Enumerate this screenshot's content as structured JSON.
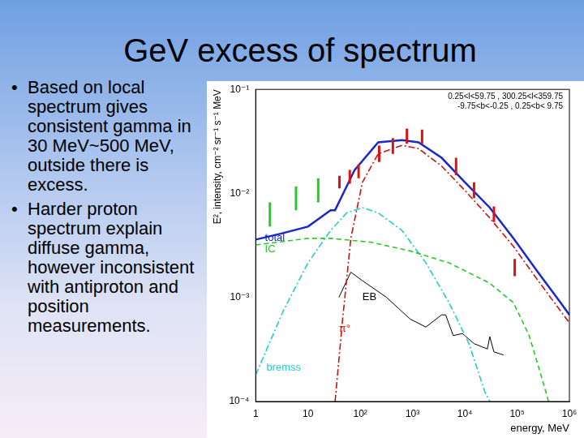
{
  "slide": {
    "title": "GeV excess of spectrum",
    "bullets": [
      "Based on local spectrum gives consistent gamma in 30 MeV~500 MeV, outside there is excess.",
      "Harder proton spectrum explain diffuse gamma, however inconsistent with antiproton and position measurements."
    ]
  },
  "chart_data": {
    "type": "line",
    "subtitle": [
      "0.25<l<59.75 , 300.25<l<359.75",
      "-9.75<b<-0.25 , 0.25<b< 9.75"
    ],
    "x_label": "energy, MeV",
    "y_label": "E², intensity, cm⁻² sr⁻¹ s⁻¹ MeV",
    "log": true,
    "grid": false,
    "xlim": [
      1,
      1000000
    ],
    "xticks": [
      1,
      10,
      {
        "value": 100,
        "label": "10²"
      },
      {
        "value": 1000,
        "label": "10³"
      },
      {
        "value": 10000,
        "label": "10⁴"
      },
      {
        "value": 100000,
        "label": "10⁵"
      },
      {
        "value": 1000000,
        "label": "10⁶"
      }
    ],
    "ylim": [
      0.0001,
      0.1
    ],
    "yticks": [
      {
        "value": 0.0001,
        "label": "10⁻⁴"
      },
      {
        "value": 0.001,
        "label": "10⁻³"
      },
      {
        "value": 0.01,
        "label": "10⁻²"
      },
      {
        "value": 0.1,
        "label": "10⁻¹"
      }
    ],
    "series": [
      {
        "name": "total",
        "type": "line",
        "color": "#1a28c8",
        "line_style": "solid",
        "label_at": [
          1.5,
          0.0037
        ],
        "x": [
          1,
          3,
          10,
          27,
          33,
          78,
          220,
          630,
          1300,
          3600,
          10000,
          30000,
          85000,
          240000,
          680000,
          1000000
        ],
        "values": [
          0.0036,
          0.0041,
          0.0048,
          0.0069,
          0.0069,
          0.0168,
          0.031,
          0.0325,
          0.031,
          0.022,
          0.0128,
          0.0073,
          0.0037,
          0.0018,
          0.00089,
          0.00068
        ]
      },
      {
        "name": "IC",
        "type": "line",
        "color": "#22cc22",
        "line_style": "dashed",
        "label_at": [
          1.5,
          0.0029
        ],
        "x": [
          1,
          10,
          27,
          158,
          900,
          5000,
          30000,
          85000,
          170000,
          290000,
          400000
        ],
        "values": [
          0.0032,
          0.0037,
          0.0037,
          0.0034,
          0.0028,
          0.00215,
          0.00137,
          0.00089,
          0.00043,
          0.000175,
          0.0001
        ]
      },
      {
        "name": "π°",
        "type": "line",
        "color": "#cc1111",
        "line_style": "dashdot",
        "label_at": [
          39,
          0.0005
        ],
        "x": [
          33,
          46,
          66,
          110,
          220,
          630,
          1300,
          3600,
          10000,
          30000,
          85000,
          240000,
          680000,
          1000000
        ],
        "values": [
          0.0001,
          0.00062,
          0.0037,
          0.0128,
          0.024,
          0.029,
          0.027,
          0.0183,
          0.0107,
          0.0058,
          0.0031,
          0.0015,
          0.00074,
          0.00057
        ]
      },
      {
        "name": "bremss",
        "type": "line",
        "color": "#22cccc",
        "line_style": "dashdot",
        "label_at": [
          1.6,
          0.00021
        ],
        "x": [
          1,
          3.4,
          10,
          27,
          55,
          110,
          220,
          630,
          1800,
          5000,
          12000,
          24000,
          30000
        ],
        "values": [
          0.00018,
          0.00075,
          0.00215,
          0.0044,
          0.0065,
          0.0073,
          0.0065,
          0.0044,
          0.00215,
          0.00089,
          0.00036,
          0.000125,
          0.0001
        ]
      },
      {
        "name": "EB",
        "type": "line",
        "color": "#000000",
        "line_style": "solid",
        "label_at": [
          110,
          0.001
        ],
        "x": [
          39,
          66,
          110,
          320,
          900,
          1800,
          3600,
          4300,
          6000,
          9000,
          15000,
          27000,
          30000,
          36000,
          55000
        ],
        "values": [
          0.001,
          0.00175,
          0.00145,
          0.001,
          0.00062,
          0.00052,
          0.00068,
          0.00068,
          0.00043,
          0.00045,
          0.00036,
          0.00032,
          0.00042,
          0.0003,
          0.00028
        ]
      },
      {
        "type": "errorbar",
        "color": "#22cc22",
        "x": [
          1.87,
          5.9,
          15.7
        ],
        "low": [
          0.0048,
          0.0069,
          0.0082
        ],
        "high": [
          0.0082,
          0.0117,
          0.014
        ]
      },
      {
        "type": "errorbar",
        "color": "#e01010",
        "x": [
          40,
          63,
          93,
          230,
          420,
          780,
          1520,
          6800,
          15000,
          36000,
          90000
        ],
        "low": [
          0.0112,
          0.0124,
          0.014,
          0.02,
          0.024,
          0.03,
          0.03,
          0.015,
          0.009,
          0.0053,
          0.0016
        ],
        "high": [
          0.0148,
          0.0168,
          0.019,
          0.0288,
          0.034,
          0.042,
          0.041,
          0.022,
          0.0128,
          0.0075,
          0.00235
        ]
      }
    ]
  }
}
